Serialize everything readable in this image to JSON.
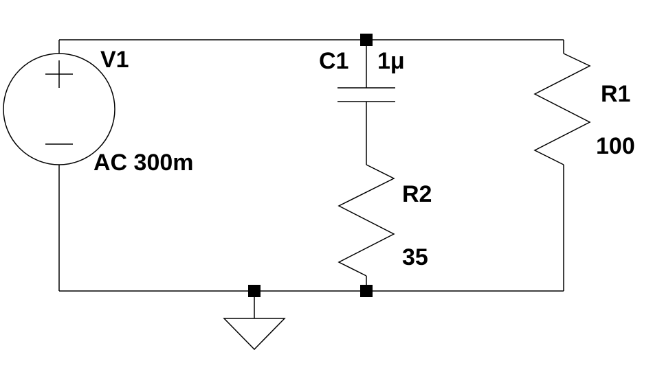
{
  "schematic": {
    "source": {
      "name": "V1",
      "value": "AC 300m"
    },
    "capacitor": {
      "name": "C1",
      "value": "1μ"
    },
    "resistor_r1": {
      "name": "R1",
      "value": "100"
    },
    "resistor_r2": {
      "name": "R2",
      "value": "35"
    }
  },
  "colors": {
    "wire": "#000000",
    "background": "#ffffff"
  }
}
